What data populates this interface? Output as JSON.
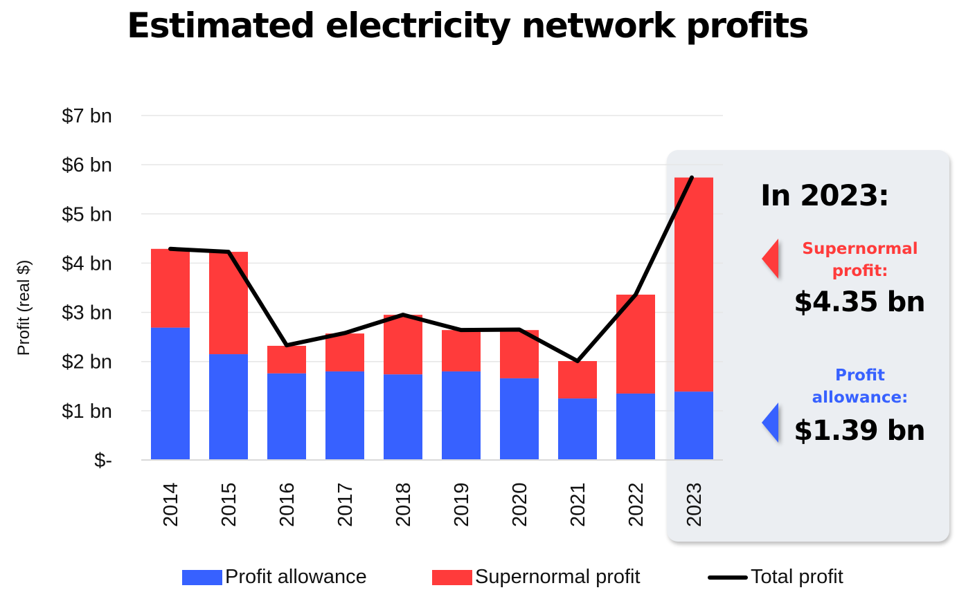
{
  "title": "Estimated electricity network profits",
  "colors": {
    "allowance": "#3761ff",
    "supernormal": "#ff3b3b",
    "total": "#000000",
    "panel": "#ebeef2"
  },
  "chart_data": {
    "type": "bar",
    "stacked": true,
    "title": "Estimated electricity network profits",
    "xlabel": "",
    "ylabel": "Profit (real $)",
    "ylim": [
      0,
      7
    ],
    "yticks": [
      0,
      1,
      2,
      3,
      4,
      5,
      6,
      7
    ],
    "ytick_labels": [
      "$-",
      "$1 bn",
      "$2 bn",
      "$3 bn",
      "$4 bn",
      "$5 bn",
      "$6 bn",
      "$7 bn"
    ],
    "categories": [
      "2014",
      "2015",
      "2016",
      "2017",
      "2018",
      "2019",
      "2020",
      "2021",
      "2022",
      "2023"
    ],
    "grid": true,
    "legend_position": "bottom",
    "series": [
      {
        "name": "Profit allowance",
        "kind": "bar",
        "values": [
          2.69,
          2.15,
          1.76,
          1.8,
          1.74,
          1.8,
          1.66,
          1.25,
          1.35,
          1.39
        ]
      },
      {
        "name": "Supernormal profit",
        "kind": "bar",
        "values": [
          1.6,
          2.08,
          0.56,
          0.77,
          1.21,
          0.84,
          0.98,
          0.76,
          2.01,
          4.35
        ]
      },
      {
        "name": "Total profit",
        "kind": "line",
        "values": [
          4.29,
          4.23,
          2.33,
          2.58,
          2.95,
          2.64,
          2.65,
          2.01,
          3.36,
          5.74
        ]
      }
    ]
  },
  "annotation": {
    "heading": "In 2023:",
    "supernormal_label_line1": "Supernormal",
    "supernormal_label_line2": "profit:",
    "supernormal_value": "$4.35 bn",
    "allowance_label_line1": "Profit",
    "allowance_label_line2": "allowance:",
    "allowance_value": "$1.39 bn"
  },
  "legend": [
    "Profit allowance",
    "Supernormal profit",
    "Total profit"
  ]
}
